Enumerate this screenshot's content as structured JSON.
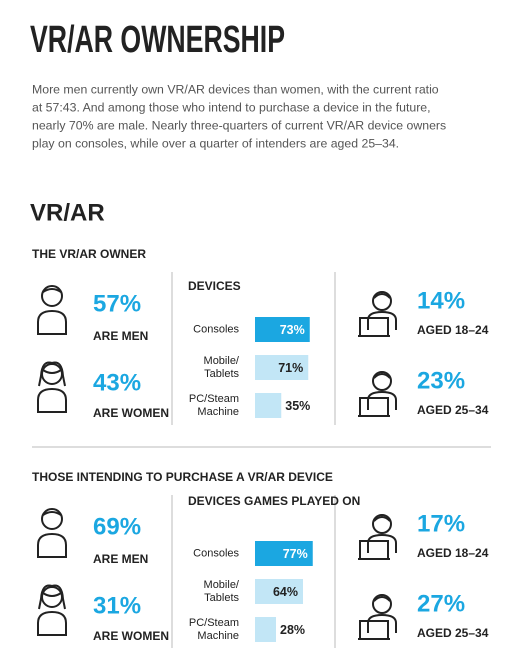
{
  "header": {
    "title": "VR/AR OWNERSHIP",
    "intro": [
      "More men currently own VR/AR devices than women, with the current ratio",
      "at 57:43. And among those who intend to purchase a device in the future,",
      "nearly 70% are male. Nearly three-quarters of current VR/AR device owners",
      "play on consoles, while over a quarter of intenders are aged 25–34."
    ]
  },
  "section_heading": "VR/AR",
  "groups": [
    {
      "title": "THE VR/AR OWNER",
      "men": {
        "value": "57%",
        "label": "ARE MEN"
      },
      "women": {
        "value": "43%",
        "label": "ARE WOMEN"
      },
      "chart": {
        "type": "bar",
        "title": "DEVICES",
        "categories": [
          [
            "Consoles"
          ],
          [
            "Mobile/",
            "Tablets"
          ],
          [
            "PC/Steam",
            "Machine"
          ]
        ],
        "values": [
          73,
          71,
          35
        ],
        "value_labels": [
          "73%",
          "71%",
          "35%"
        ],
        "colors": [
          "#1ba7e1",
          "#c2e6f6",
          "#c2e6f6"
        ]
      },
      "ages": [
        {
          "value": "14%",
          "label": "AGED 18–24"
        },
        {
          "value": "23%",
          "label": "AGED 25–34"
        }
      ]
    },
    {
      "title": "THOSE INTENDING TO PURCHASE A VR/AR DEVICE",
      "men": {
        "value": "69%",
        "label": "ARE MEN"
      },
      "women": {
        "value": "31%",
        "label": "ARE WOMEN"
      },
      "chart": {
        "type": "bar",
        "title": "DEVICES GAMES PLAYED ON",
        "categories": [
          [
            "Consoles"
          ],
          [
            "Mobile/",
            "Tablets"
          ],
          [
            "PC/Steam",
            "Machine"
          ]
        ],
        "values": [
          77,
          64,
          28
        ],
        "value_labels": [
          "77%",
          "64%",
          "28%"
        ],
        "colors": [
          "#1ba7e1",
          "#c2e6f6",
          "#c2e6f6"
        ]
      },
      "ages": [
        {
          "value": "17%",
          "label": "AGED 18–24"
        },
        {
          "value": "27%",
          "label": "AGED 25–34"
        }
      ]
    }
  ]
}
